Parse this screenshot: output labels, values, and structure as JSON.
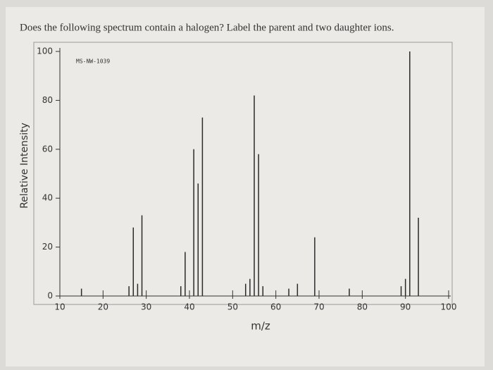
{
  "chart_data": {
    "type": "stick",
    "title": "Does the following spectrum contain a halogen? Label the parent and two daughter ions.",
    "annotation": "MS-NW-1039",
    "x_label": "m/z",
    "y_label": "Relative Intensity",
    "x": [
      15,
      26,
      27,
      28,
      29,
      38,
      39,
      41,
      42,
      43,
      53,
      54,
      55,
      56,
      57,
      63,
      65,
      69,
      77,
      89,
      90,
      91,
      93
    ],
    "values": [
      3,
      4,
      28,
      5,
      33,
      4,
      18,
      60,
      46,
      73,
      5,
      7,
      82,
      58,
      4,
      3,
      5,
      24,
      3,
      4,
      7,
      100,
      32
    ],
    "color": "#2a2a2a",
    "xlim": [
      10,
      100
    ],
    "ylim": [
      0,
      100
    ],
    "xticks": [
      10,
      20,
      30,
      40,
      50,
      60,
      70,
      80,
      90,
      100
    ],
    "yticks": [
      0,
      20,
      40,
      60,
      80,
      100
    ]
  }
}
